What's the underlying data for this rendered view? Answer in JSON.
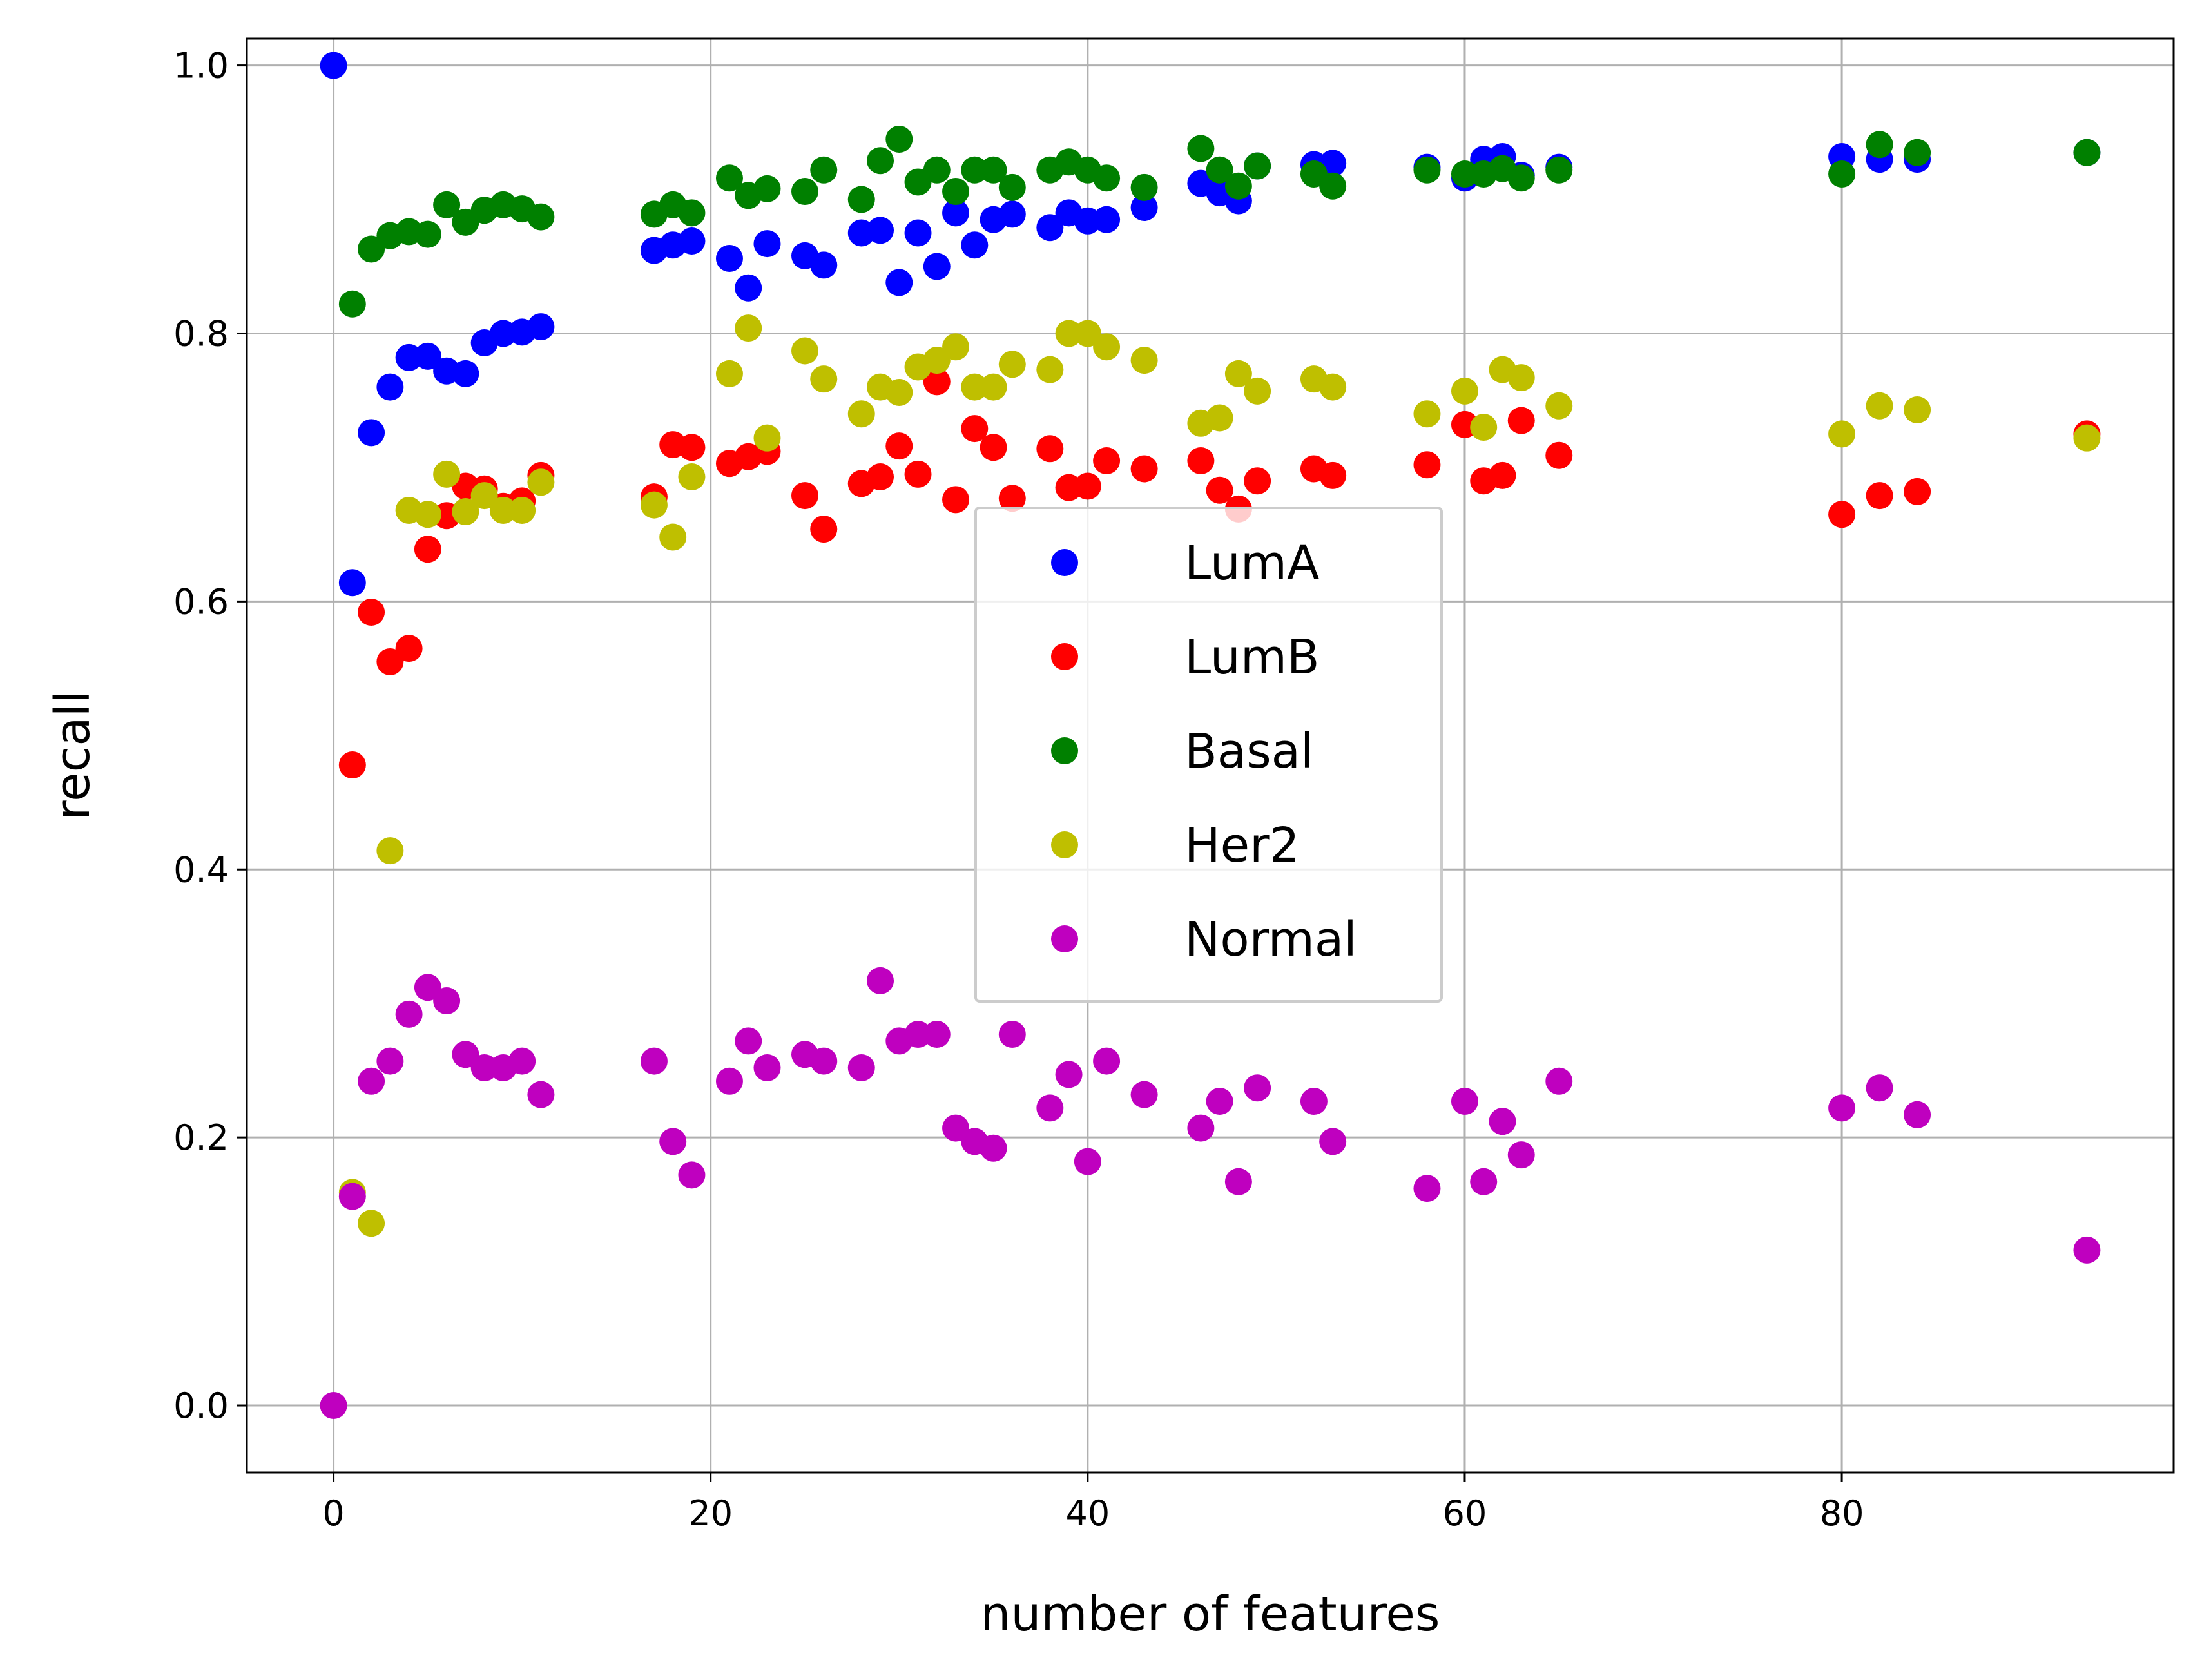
{
  "chart_data": {
    "type": "scatter",
    "xlabel": "number of features",
    "ylabel": "recall",
    "xlim": [
      -4.6,
      97.6
    ],
    "ylim": [
      -0.05,
      1.02
    ],
    "xticks": [
      0,
      20,
      40,
      60,
      80
    ],
    "yticks": [
      0.0,
      0.2,
      0.4,
      0.6,
      0.8,
      1.0
    ],
    "xtick_labels": [
      "0",
      "20",
      "40",
      "60",
      "80"
    ],
    "ytick_labels": [
      "0.0",
      "0.2",
      "0.4",
      "0.6",
      "0.8",
      "1.0"
    ],
    "grid": true,
    "legend_position": "center-right",
    "series": [
      {
        "name": "LumA",
        "color": "#0000ff",
        "x": [
          0,
          1,
          2,
          3,
          4,
          5,
          6,
          7,
          8,
          9,
          10,
          11,
          17,
          18,
          19,
          21,
          22,
          23,
          25,
          26,
          28,
          29,
          30,
          31,
          32,
          33,
          34,
          35,
          36,
          38,
          39,
          40,
          41,
          43,
          46,
          47,
          48,
          49,
          52,
          53,
          58,
          60,
          61,
          62,
          63,
          65,
          80,
          82,
          84,
          93
        ],
        "y": [
          1.0,
          0.614,
          0.726,
          0.76,
          0.782,
          0.783,
          0.772,
          0.77,
          0.793,
          0.8,
          0.801,
          0.805,
          0.862,
          0.866,
          0.869,
          0.856,
          0.834,
          0.867,
          0.858,
          0.851,
          0.875,
          0.877,
          0.838,
          0.875,
          0.85,
          0.89,
          0.866,
          0.885,
          0.889,
          0.879,
          0.89,
          0.884,
          0.885,
          0.894,
          0.912,
          0.905,
          0.899,
          0.925,
          0.926,
          0.927,
          0.924,
          0.916,
          0.93,
          0.932,
          0.918,
          0.924,
          0.932,
          0.93,
          0.93,
          0.935
        ]
      },
      {
        "name": "LumB",
        "color": "#ff0000",
        "x": [
          1,
          2,
          3,
          4,
          5,
          6,
          7,
          8,
          9,
          10,
          11,
          17,
          18,
          19,
          21,
          22,
          23,
          25,
          26,
          28,
          29,
          30,
          31,
          32,
          33,
          34,
          35,
          36,
          38,
          39,
          40,
          41,
          43,
          46,
          47,
          48,
          49,
          52,
          53,
          58,
          60,
          61,
          62,
          63,
          65,
          80,
          82,
          84,
          93
        ],
        "y": [
          0.478,
          0.592,
          0.555,
          0.565,
          0.639,
          0.664,
          0.686,
          0.684,
          0.671,
          0.675,
          0.694,
          0.678,
          0.717,
          0.715,
          0.703,
          0.708,
          0.712,
          0.679,
          0.654,
          0.688,
          0.693,
          0.716,
          0.695,
          0.764,
          0.676,
          0.729,
          0.715,
          0.677,
          0.714,
          0.685,
          0.686,
          0.705,
          0.699,
          0.705,
          0.683,
          0.669,
          0.69,
          0.699,
          0.694,
          0.702,
          0.732,
          0.69,
          0.694,
          0.735,
          0.709,
          0.665,
          0.679,
          0.682,
          0.725
        ]
      },
      {
        "name": "Basal",
        "color": "#008000",
        "x": [
          1,
          2,
          3,
          4,
          5,
          6,
          7,
          8,
          9,
          10,
          11,
          17,
          18,
          19,
          21,
          22,
          23,
          25,
          26,
          28,
          29,
          30,
          31,
          32,
          33,
          34,
          35,
          36,
          38,
          39,
          40,
          41,
          43,
          46,
          47,
          48,
          49,
          52,
          53,
          58,
          60,
          61,
          62,
          63,
          65,
          80,
          82,
          84,
          93
        ],
        "y": [
          0.822,
          0.863,
          0.873,
          0.876,
          0.874,
          0.896,
          0.883,
          0.892,
          0.896,
          0.893,
          0.887,
          0.889,
          0.896,
          0.89,
          0.916,
          0.903,
          0.908,
          0.906,
          0.922,
          0.9,
          0.929,
          0.945,
          0.913,
          0.922,
          0.906,
          0.922,
          0.922,
          0.909,
          0.922,
          0.928,
          0.922,
          0.916,
          0.909,
          0.938,
          0.922,
          0.91,
          0.925,
          0.919,
          0.91,
          0.922,
          0.919,
          0.919,
          0.923,
          0.916,
          0.922,
          0.919,
          0.941,
          0.935,
          0.935
        ]
      },
      {
        "name": "Her2",
        "color": "#bfbf00",
        "x": [
          1,
          2,
          3,
          4,
          5,
          6,
          7,
          8,
          9,
          10,
          11,
          17,
          18,
          19,
          21,
          22,
          23,
          25,
          26,
          28,
          29,
          30,
          31,
          32,
          33,
          34,
          35,
          36,
          38,
          39,
          40,
          41,
          43,
          46,
          47,
          48,
          49,
          52,
          53,
          58,
          60,
          61,
          62,
          63,
          65,
          80,
          82,
          84,
          93
        ],
        "y": [
          0.159,
          0.136,
          0.414,
          0.668,
          0.665,
          0.695,
          0.667,
          0.679,
          0.668,
          0.668,
          0.689,
          0.672,
          0.648,
          0.693,
          0.77,
          0.804,
          0.722,
          0.787,
          0.766,
          0.74,
          0.76,
          0.756,
          0.775,
          0.78,
          0.79,
          0.76,
          0.76,
          0.777,
          0.773,
          0.8,
          0.8,
          0.79,
          0.78,
          0.733,
          0.737,
          0.77,
          0.757,
          0.766,
          0.76,
          0.74,
          0.757,
          0.73,
          0.773,
          0.767,
          0.746,
          0.725,
          0.746,
          0.743,
          0.722
        ]
      },
      {
        "name": "Normal",
        "color": "#bf00bf",
        "x": [
          0,
          1,
          2,
          3,
          4,
          5,
          6,
          7,
          8,
          9,
          10,
          11,
          17,
          18,
          19,
          21,
          22,
          23,
          25,
          26,
          28,
          29,
          30,
          31,
          32,
          33,
          34,
          35,
          36,
          38,
          39,
          40,
          41,
          43,
          46,
          47,
          48,
          49,
          52,
          53,
          58,
          60,
          61,
          62,
          63,
          65,
          80,
          82,
          84,
          93
        ],
        "y": [
          0.0,
          0.156,
          0.242,
          0.257,
          0.292,
          0.312,
          0.302,
          0.262,
          0.252,
          0.252,
          0.257,
          0.232,
          0.257,
          0.197,
          0.172,
          0.242,
          0.272,
          0.252,
          0.262,
          0.257,
          0.252,
          0.317,
          0.272,
          0.277,
          0.277,
          0.207,
          0.197,
          0.192,
          0.277,
          0.222,
          0.247,
          0.182,
          0.257,
          0.232,
          0.207,
          0.227,
          0.167,
          0.237,
          0.227,
          0.197,
          0.162,
          0.227,
          0.167,
          0.212,
          0.187,
          0.242,
          0.222,
          0.237,
          0.217,
          0.116
        ]
      }
    ]
  }
}
